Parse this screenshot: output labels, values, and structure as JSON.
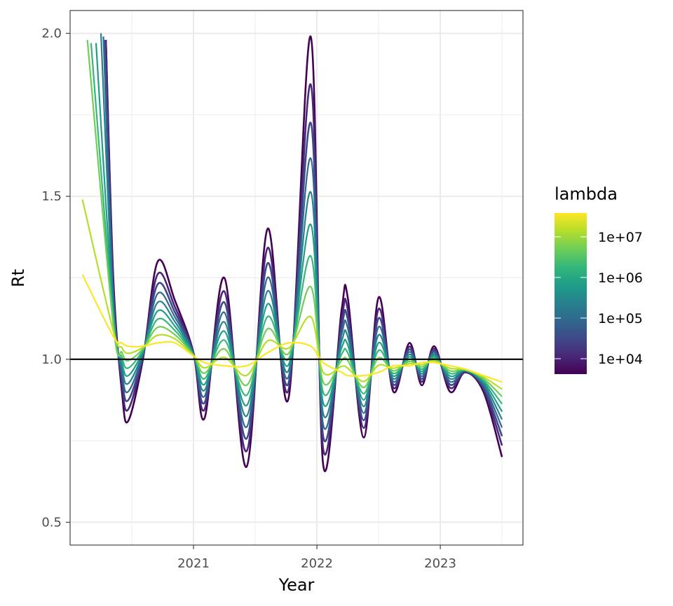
{
  "chart_data": {
    "type": "line",
    "xlabel": "Year",
    "ylabel": "Rt",
    "xlim": [
      2020.0,
      2023.67
    ],
    "ylim": [
      0.43,
      2.07
    ],
    "x_ticks": [
      {
        "value": 2021,
        "label": "2021"
      },
      {
        "value": 2022,
        "label": "2022"
      },
      {
        "value": 2023,
        "label": "2023"
      }
    ],
    "y_ticks": [
      {
        "value": 0.5,
        "label": "0.5"
      },
      {
        "value": 1.0,
        "label": "1.0"
      },
      {
        "value": 1.5,
        "label": "1.5"
      },
      {
        "value": 2.0,
        "label": "2.0"
      }
    ],
    "grid": true,
    "reference_line": {
      "y": 1.0,
      "color": "#000000"
    },
    "legend": {
      "title": "lambda",
      "position": "right",
      "labels": [
        "1e+07",
        "1e+06",
        "1e+05",
        "1e+04"
      ],
      "colors": [
        "#440154",
        "#482878",
        "#3e4989",
        "#31688e",
        "#26828e",
        "#1f9e89",
        "#35b779",
        "#6ece58",
        "#b5de2b",
        "#fde725"
      ]
    },
    "x_grid": [
      2020.5,
      2021.0,
      2021.5,
      2022.0,
      2022.5,
      2023.0,
      2023.5
    ],
    "envelope": {
      "x": [
        2020.27,
        2020.35,
        2020.42,
        2020.47,
        2020.59,
        2020.71,
        2020.85,
        2021.0,
        2021.09,
        2021.25,
        2021.43,
        2021.6,
        2021.77,
        2021.95,
        2022.05,
        2022.2,
        2022.25,
        2022.38,
        2022.5,
        2022.62,
        2022.75,
        2022.85,
        2022.95,
        2023.08,
        2023.2,
        2023.35,
        2023.5
      ],
      "rough": [
        1.98,
        1.25,
        0.9,
        0.81,
        1.0,
        1.3,
        1.18,
        1.02,
        0.82,
        1.25,
        0.67,
        1.4,
        0.88,
        1.99,
        0.68,
        1.15,
        1.19,
        0.76,
        1.19,
        0.9,
        1.05,
        0.92,
        1.04,
        0.9,
        0.96,
        0.9,
        0.7
      ],
      "smooth": [
        1.09,
        1.07,
        1.05,
        1.04,
        1.04,
        1.05,
        1.05,
        1.01,
        0.99,
        0.98,
        0.98,
        1.02,
        1.05,
        1.04,
        0.99,
        0.96,
        0.95,
        0.95,
        0.96,
        0.98,
        0.98,
        0.99,
        0.99,
        0.98,
        0.97,
        0.95,
        0.93
      ]
    },
    "series_start_x": [
      2020.29,
      2020.29,
      2020.28,
      2020.27,
      2020.25,
      2020.21,
      2020.17,
      2020.14,
      2020.1,
      2020.1
    ],
    "series_start_y": [
      1.98,
      1.98,
      1.98,
      1.99,
      2.0,
      1.97,
      1.97,
      1.98,
      1.49,
      1.26
    ]
  }
}
